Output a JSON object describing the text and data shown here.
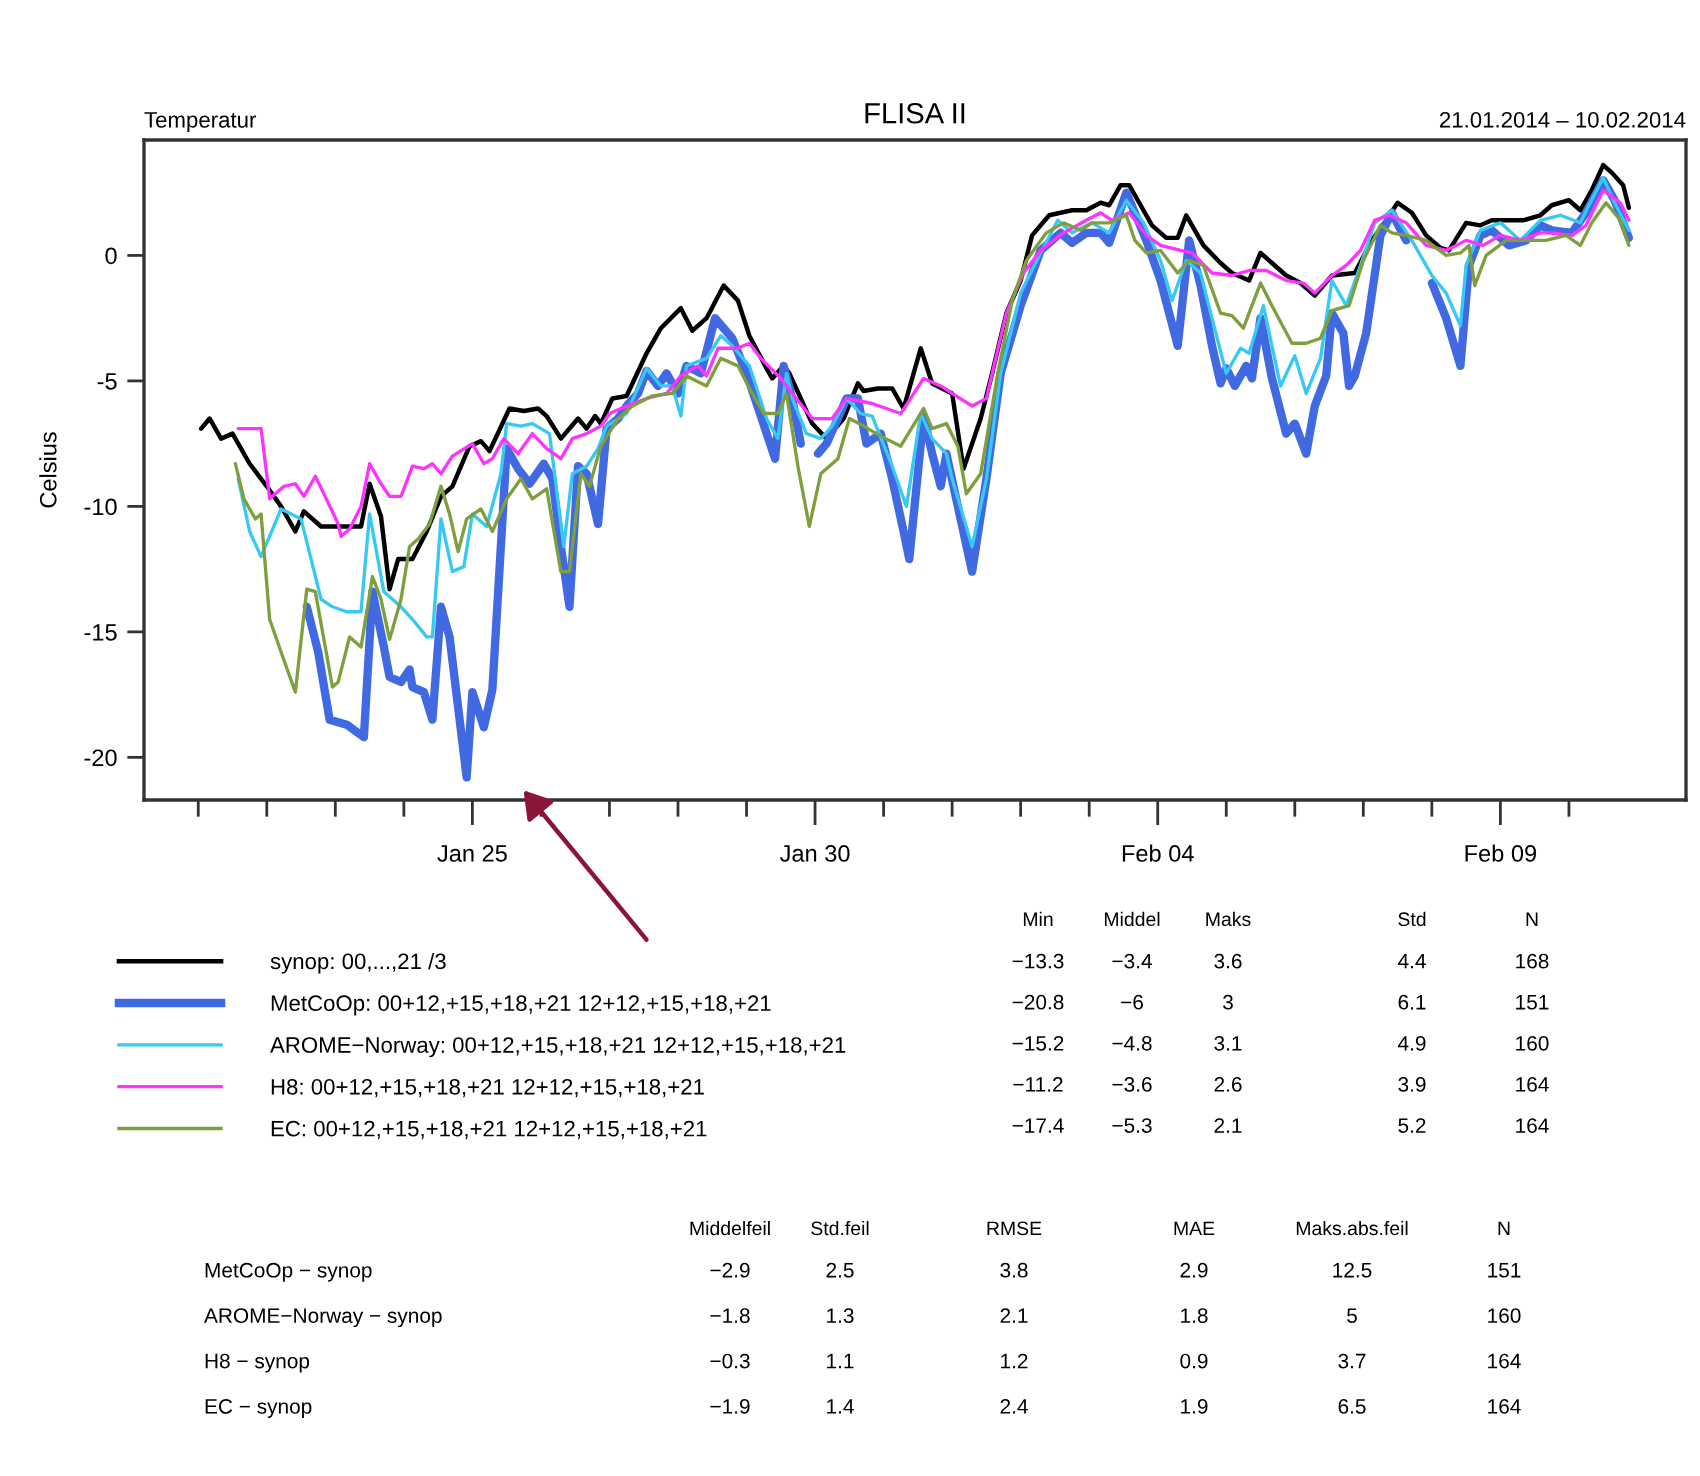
{
  "chart_data": {
    "type": "line",
    "title": "FLISA II",
    "ylabel": "Celsius",
    "annotations": [
      "Temperatur",
      "21.01.2014 – 10.02.2014",
      "Min",
      "Middel",
      "Maks",
      "Std",
      "N",
      "−13.3",
      "−3.4",
      "3.6",
      "4.4",
      "168",
      "−20.8",
      "−6",
      "3",
      "6.1",
      "151",
      "−15.2",
      "−4.8",
      "3.1",
      "4.9",
      "160",
      "−11.2",
      "−3.6",
      "2.6",
      "3.9",
      "164",
      "−17.4",
      "−5.3",
      "2.1",
      "5.2",
      "164",
      "Middelfeil",
      "Std.feil",
      "RMSE",
      "MAE",
      "Maks.abs.feil",
      "N",
      "MetCoOp − synop",
      "−2.9",
      "2.5",
      "3.8",
      "2.9",
      "12.5",
      "151",
      "AROME−Norway − synop",
      "−1.8",
      "1.3",
      "2.1",
      "1.8",
      "5",
      "160",
      "H8 − synop",
      "−0.3",
      "1.1",
      "1.2",
      "0.9",
      "3.7",
      "164",
      "EC − synop",
      "−1.9",
      "1.4",
      "2.4",
      "1.9",
      "6.5",
      "164"
    ],
    "xlim": [
      "2014-01-20T05:00",
      "2014-02-11T17:00"
    ],
    "xticks": [
      {
        "value": "2014-01-21",
        "label": null
      },
      {
        "value": "2014-01-22",
        "label": null
      },
      {
        "value": "2014-01-23",
        "label": null
      },
      {
        "value": "2014-01-24",
        "label": null
      },
      {
        "value": "2014-01-25",
        "label": "Jan 25"
      },
      {
        "value": "2014-01-26",
        "label": null
      },
      {
        "value": "2014-01-27",
        "label": null
      },
      {
        "value": "2014-01-28",
        "label": null
      },
      {
        "value": "2014-01-29",
        "label": null
      },
      {
        "value": "2014-01-30",
        "label": "Jan 30"
      },
      {
        "value": "2014-01-31",
        "label": null
      },
      {
        "value": "2014-02-01",
        "label": null
      },
      {
        "value": "2014-02-02",
        "label": null
      },
      {
        "value": "2014-02-03",
        "label": null
      },
      {
        "value": "2014-02-04",
        "label": "Feb 04"
      },
      {
        "value": "2014-02-05",
        "label": null
      },
      {
        "value": "2014-02-06",
        "label": null
      },
      {
        "value": "2014-02-07",
        "label": null
      },
      {
        "value": "2014-02-08",
        "label": null
      },
      {
        "value": "2014-02-09",
        "label": "Feb 09"
      },
      {
        "value": "2014-02-10",
        "label": null
      }
    ],
    "ylim": [
      -21.7,
      4.6
    ],
    "yticks": [
      -20,
      -15,
      -10,
      -5,
      0
    ],
    "grid": false,
    "legend": "bottom",
    "line_style": "solid",
    "series": [
      {
        "name": "synop: 00,...,21 /3",
        "color": "#000000",
        "x": [
          "2014-01-21T01:00",
          "2014-01-21T04:00",
          "2014-01-21T08:00",
          "2014-01-21T12:00",
          "2014-01-21T18:00",
          "2014-01-22T00:00",
          "2014-01-22T05:00",
          "2014-01-22T10:00",
          "2014-01-22T13:00",
          "2014-01-22T19:00",
          "2014-01-23T02:00",
          "2014-01-23T09:00",
          "2014-01-23T12:00",
          "2014-01-23T16:00",
          "2014-01-23T19:00",
          "2014-01-23T22:00",
          "2014-01-24T03:00",
          "2014-01-24T08:00",
          "2014-01-24T13:00",
          "2014-01-24T17:00",
          "2014-01-24T23:00",
          "2014-01-25T03:00",
          "2014-01-25T06:00",
          "2014-01-25T13:00",
          "2014-01-25T18:00",
          "2014-01-25T23:00",
          "2014-01-26T02:00",
          "2014-01-26T07:00",
          "2014-01-26T13:00",
          "2014-01-26T16:00",
          "2014-01-26T19:00",
          "2014-01-26T21:00",
          "2014-01-27T01:00",
          "2014-01-27T06:00",
          "2014-01-27T13:00",
          "2014-01-27T18:00",
          "2014-01-28T01:00",
          "2014-01-28T05:00",
          "2014-01-28T10:00",
          "2014-01-28T16:00",
          "2014-01-28T21:00",
          "2014-01-29T01:00",
          "2014-01-29T07:00",
          "2014-01-29T09:00",
          "2014-01-29T13:00",
          "2014-01-29T15:00",
          "2014-01-29T19:00",
          "2014-01-29T23:00",
          "2014-01-30T04:00",
          "2014-01-30T10:00",
          "2014-01-30T15:00",
          "2014-01-30T17:00",
          "2014-01-30T22:00",
          "2014-01-31T03:00",
          "2014-01-31T07:00",
          "2014-01-31T13:00",
          "2014-01-31T17:00",
          "2014-02-01T00:00",
          "2014-02-01T04:00",
          "2014-02-01T10:00",
          "2014-02-01T14:00",
          "2014-02-01T19:00",
          "2014-02-02T00:00",
          "2014-02-02T04:00",
          "2014-02-02T10:00",
          "2014-02-02T18:00",
          "2014-02-02T23:00",
          "2014-02-03T04:00",
          "2014-02-03T07:00",
          "2014-02-03T11:00",
          "2014-02-03T14:00",
          "2014-02-03T18:00",
          "2014-02-03T22:00",
          "2014-02-04T03:00",
          "2014-02-04T07:00",
          "2014-02-04T10:00",
          "2014-02-04T12:00",
          "2014-02-04T16:00",
          "2014-02-04T22:00",
          "2014-02-05T02:00",
          "2014-02-05T08:00",
          "2014-02-05T12:00",
          "2014-02-05T16:00",
          "2014-02-05T21:00",
          "2014-02-06T02:00",
          "2014-02-06T07:00",
          "2014-02-06T13:00",
          "2014-02-06T21:00",
          "2014-02-07T03:00",
          "2014-02-07T08:00",
          "2014-02-07T12:00",
          "2014-02-07T17:00",
          "2014-02-07T22:00",
          "2014-02-08T03:00",
          "2014-02-08T06:00",
          "2014-02-08T12:00",
          "2014-02-08T17:00",
          "2014-02-08T21:00",
          "2014-02-09T02:00",
          "2014-02-09T08:00",
          "2014-02-09T14:00",
          "2014-02-09T18:00",
          "2014-02-10T00:00",
          "2014-02-10T04:00",
          "2014-02-10T08:00",
          "2014-02-10T12:00",
          "2014-02-10T15:00",
          "2014-02-10T19:00",
          "2014-02-10T21:00"
        ],
        "values": [
          -6.9,
          -6.5,
          -7.3,
          -7.1,
          -8.3,
          -9.2,
          -10.0,
          -11.0,
          -10.2,
          -10.8,
          -10.8,
          -10.8,
          -9.1,
          -10.4,
          -13.3,
          -12.1,
          -12.1,
          -11.0,
          -9.6,
          -9.2,
          -7.6,
          -7.4,
          -7.8,
          -6.1,
          -6.2,
          -6.1,
          -6.4,
          -7.3,
          -6.5,
          -6.9,
          -6.4,
          -6.7,
          -5.7,
          -5.6,
          -3.9,
          -2.9,
          -2.1,
          -3.0,
          -2.5,
          -1.2,
          -1.8,
          -3.2,
          -4.5,
          -4.9,
          -4.4,
          -4.7,
          -5.7,
          -6.7,
          -7.3,
          -6.5,
          -5.1,
          -5.4,
          -5.3,
          -5.3,
          -6.1,
          -3.7,
          -5.1,
          -5.5,
          -8.5,
          -6.5,
          -4.7,
          -2.3,
          -1.0,
          0.8,
          1.6,
          1.8,
          1.8,
          2.1,
          2.0,
          2.8,
          2.8,
          2.0,
          1.2,
          0.7,
          0.7,
          1.6,
          1.2,
          0.4,
          -0.3,
          -0.7,
          -1.0,
          0.1,
          -0.3,
          -0.8,
          -1.1,
          -1.6,
          -0.8,
          -0.7,
          0.6,
          1.4,
          2.1,
          1.7,
          0.8,
          0.3,
          0.2,
          1.3,
          1.2,
          1.4,
          1.4,
          1.4,
          1.6,
          2.0,
          2.2,
          1.8,
          2.6,
          3.6,
          3.3,
          2.8,
          1.9
        ]
      },
      {
        "name": "MetCoOp: 00+12,+15,+18,+21 12+12,+15,+18,+21",
        "color": "#4169e1",
        "x": [
          "2014-01-22T14:00",
          "2014-01-22T18:00",
          "2014-01-22T22:00",
          "2014-01-23T04:00",
          "2014-01-23T10:00",
          "2014-01-23T13:00",
          "2014-01-23T17:00",
          "2014-01-23T19:00",
          "2014-01-23T23:00",
          "2014-01-24T02:00",
          "2014-01-24T03:00",
          "2014-01-24T07:00",
          "2014-01-24T10:00",
          "2014-01-24T13:00",
          "2014-01-24T16:00",
          "2014-01-24T22:00",
          "2014-01-25T00:00",
          "2014-01-25T04:00",
          "2014-01-25T07:00",
          "2014-01-25T12:00",
          "2014-01-25T16:00",
          "2014-01-25T20:00",
          "2014-01-26T01:00",
          "2014-01-26T04:00",
          "2014-01-26T07:00",
          "2014-01-26T10:00",
          "2014-01-26T13:00",
          "2014-01-26T16:00",
          "2014-01-26T20:00",
          "2014-01-26T23:00",
          "2014-01-27T03:00",
          "2014-01-27T06:00",
          "2014-01-27T10:00",
          "2014-01-27T13:00",
          "2014-01-27T17:00",
          "2014-01-27T20:00",
          "2014-01-28T00:00",
          "2014-01-28T03:00",
          "2014-01-28T08:00",
          "2014-01-28T13:00",
          "2014-01-28T19:00",
          "2014-01-29T00:00",
          "2014-01-29T05:00",
          "2014-01-29T10:00",
          "2014-01-29T13:00",
          "2014-01-29T16:00",
          "2014-01-29T19:00",
          "2014-01-29T21:00",
          "2014-01-30T01:00",
          "2014-01-30T04:00",
          "2014-01-30T08:00",
          "2014-01-30T11:00",
          "2014-01-30T15:00",
          "2014-01-30T18:00",
          "2014-01-30T23:00",
          "2014-01-31T03:00",
          "2014-01-31T07:00",
          "2014-01-31T09:00",
          "2014-01-31T14:00",
          "2014-01-31T17:00",
          "2014-01-31T20:00",
          "2014-01-31T22:00",
          "2014-02-01T02:00",
          "2014-02-01T07:00",
          "2014-02-01T12:00",
          "2014-02-01T17:00",
          "2014-02-02T00:00",
          "2014-02-02T07:00",
          "2014-02-02T14:00",
          "2014-02-02T18:00",
          "2014-02-02T23:00",
          "2014-02-03T04:00",
          "2014-02-03T07:00",
          "2014-02-03T13:00",
          "2014-02-03T16:00",
          "2014-02-03T20:00",
          "2014-02-04T01:00",
          "2014-02-04T04:00",
          "2014-02-04T07:00",
          "2014-02-04T11:00",
          "2014-02-04T15:00",
          "2014-02-04T19:00",
          "2014-02-04T22:00",
          "2014-02-05T00:00",
          "2014-02-05T03:00",
          "2014-02-05T07:00",
          "2014-02-05T09:00",
          "2014-02-05T12:00",
          "2014-02-05T16:00",
          "2014-02-05T21:00",
          "2014-02-06T00:00",
          "2014-02-06T04:00",
          "2014-02-06T07:00",
          "2014-02-06T11:00",
          "2014-02-06T13:00",
          "2014-02-06T17:00",
          "2014-02-06T19:00",
          "2014-02-06T21:00",
          "2014-02-07T01:00",
          "2014-02-07T06:00",
          "2014-02-07T10:00",
          "2014-02-07T15:00",
          "2014-02-07T20:00",
          "2014-02-08T00:00",
          "2014-02-08T05:00",
          "2014-02-08T10:00",
          "2014-02-08T13:00",
          "2014-02-08T17:00",
          "2014-02-08T21:00",
          "2014-02-09T03:00",
          "2014-02-09T09:00",
          "2014-02-09T14:00",
          "2014-02-09T18:00",
          "2014-02-10T01:00",
          "2014-02-10T06:00",
          "2014-02-10T12:00",
          "2014-02-10T16:00",
          "2014-02-10T21:00"
        ],
        "values": [
          -14.0,
          -15.8,
          -18.5,
          -18.7,
          -19.2,
          -13.4,
          -15.6,
          -16.8,
          -17.0,
          -16.5,
          -17.2,
          -17.4,
          -18.5,
          -14.0,
          -15.2,
          -20.8,
          -17.4,
          -18.8,
          -17.3,
          -7.7,
          -8.5,
          -9.1,
          -8.3,
          -8.9,
          -11.6,
          -14.0,
          -8.4,
          -8.7,
          -10.7,
          -6.9,
          -6.5,
          -6.0,
          -5.5,
          -4.6,
          -5.2,
          -4.7,
          -5.5,
          -4.4,
          -4.7,
          -2.5,
          -3.3,
          -4.7,
          -6.4,
          -8.1,
          -4.4,
          -5.7,
          -7.5,
          null,
          -7.9,
          -7.5,
          -6.5,
          -5.7,
          -5.7,
          -7.5,
          -7.1,
          -8.9,
          -11.0,
          -12.1,
          -6.4,
          -7.9,
          -9.2,
          -7.9,
          -10.0,
          -12.6,
          -8.9,
          -4.7,
          -2.0,
          0.2,
          0.9,
          0.5,
          0.9,
          0.9,
          0.5,
          2.5,
          1.7,
          0.6,
          -1.0,
          -2.3,
          -3.6,
          0.6,
          -1.2,
          -3.6,
          -5.1,
          -4.5,
          -5.2,
          -4.4,
          -4.9,
          -2.5,
          -4.9,
          -7.1,
          -6.7,
          -7.9,
          -6.0,
          -4.8,
          -2.3,
          -3.1,
          -5.2,
          -4.8,
          -3.1,
          0.8,
          1.7,
          0.6,
          null,
          -1.1,
          -2.5,
          -4.4,
          -0.4,
          0.8,
          1.0,
          0.4,
          0.6,
          1.2,
          1.0,
          0.9,
          1.7,
          3.0,
          2.2,
          0.7
        ]
      },
      {
        "name": "AROME−Norway: 00+12,+15,+18,+21 12+12,+15,+18,+21",
        "color": "#38c8f4",
        "x": [
          "2014-01-21T14:00",
          "2014-01-21T18:00",
          "2014-01-21T22:00",
          "2014-01-22T05:00",
          "2014-01-22T12:00",
          "2014-01-22T19:00",
          "2014-01-22T23:00",
          "2014-01-23T04:00",
          "2014-01-23T09:00",
          "2014-01-23T12:00",
          "2014-01-23T17:00",
          "2014-01-23T23:00",
          "2014-01-24T03:00",
          "2014-01-24T08:00",
          "2014-01-24T10:00",
          "2014-01-24T13:00",
          "2014-01-24T17:00",
          "2014-01-24T21:00",
          "2014-01-25T00:00",
          "2014-01-25T05:00",
          "2014-01-25T10:00",
          "2014-01-25T12:00",
          "2014-01-25T17:00",
          "2014-01-25T21:00",
          "2014-01-26T03:00",
          "2014-01-26T08:00",
          "2014-01-26T11:00",
          "2014-01-26T16:00",
          "2014-01-26T20:00",
          "2014-01-26T23:00",
          "2014-01-27T06:00",
          "2014-01-27T13:00",
          "2014-01-27T18:00",
          "2014-01-27T22:00",
          "2014-01-28T01:00",
          "2014-01-28T03:00",
          "2014-01-28T10:00",
          "2014-01-28T15:00",
          "2014-01-28T19:00",
          "2014-01-29T01:00",
          "2014-01-29T07:00",
          "2014-01-29T11:00",
          "2014-01-29T14:00",
          "2014-01-29T16:00",
          "2014-01-29T21:00",
          "2014-01-30T02:00",
          "2014-01-30T06:00",
          "2014-01-30T11:00",
          "2014-01-30T16:00",
          "2014-01-30T20:00",
          "2014-01-31T03:00",
          "2014-01-31T08:00",
          "2014-01-31T13:00",
          "2014-01-31T17:00",
          "2014-01-31T22:00",
          "2014-02-01T00:00",
          "2014-02-01T07:00",
          "2014-02-01T12:00",
          "2014-02-01T17:00",
          "2014-02-02T00:00",
          "2014-02-02T07:00",
          "2014-02-02T13:00",
          "2014-02-02T18:00",
          "2014-02-03T01:00",
          "2014-02-03T07:00",
          "2014-02-03T13:00",
          "2014-02-03T19:00",
          "2014-02-04T01:00",
          "2014-02-04T05:00",
          "2014-02-04T10:00",
          "2014-02-04T15:00",
          "2014-02-04T19:00",
          "2014-02-05T00:00",
          "2014-02-05T05:00",
          "2014-02-05T08:00",
          "2014-02-05T13:00",
          "2014-02-05T19:00",
          "2014-02-06T00:00",
          "2014-02-06T04:00",
          "2014-02-06T09:00",
          "2014-02-06T13:00",
          "2014-02-06T18:00",
          "2014-02-06T23:00",
          "2014-02-07T04:00",
          "2014-02-07T10:00",
          "2014-02-07T17:00",
          "2014-02-08T00:00",
          "2014-02-08T05:00",
          "2014-02-08T10:00",
          "2014-02-08T12:00",
          "2014-02-08T17:00",
          "2014-02-09T00:00",
          "2014-02-09T07:00",
          "2014-02-09T14:00",
          "2014-02-09T21:00",
          "2014-02-10T04:00",
          "2014-02-10T07:00",
          "2014-02-10T12:00",
          "2014-02-10T16:00",
          "2014-02-10T21:00"
        ],
        "values": [
          -8.9,
          -11.0,
          -12.0,
          -10.1,
          -10.5,
          -13.7,
          -14.0,
          -14.2,
          -14.2,
          -10.3,
          -13.4,
          -14.0,
          -14.5,
          -15.2,
          -15.2,
          -10.5,
          -12.6,
          -12.4,
          -10.3,
          -10.8,
          -8.7,
          -6.7,
          -6.8,
          -6.7,
          -7.1,
          -11.6,
          -8.7,
          -8.4,
          -7.7,
          -6.8,
          -6.3,
          -4.5,
          -5.2,
          -5.2,
          -6.4,
          -4.4,
          -4.1,
          -3.2,
          -3.6,
          -4.4,
          -6.5,
          -7.3,
          -4.7,
          -5.7,
          -7.1,
          -7.3,
          -6.8,
          -5.7,
          -6.3,
          -6.4,
          -8.4,
          -10.0,
          -6.3,
          -7.3,
          -7.9,
          -8.9,
          -11.6,
          -8.9,
          -4.7,
          -1.5,
          0.1,
          1.4,
          0.9,
          1.3,
          0.9,
          2.2,
          1.3,
          -0.2,
          -1.8,
          -0.2,
          -0.7,
          -2.5,
          -4.7,
          -3.7,
          -3.9,
          -2.0,
          -5.2,
          -4.0,
          -5.5,
          -4.1,
          -1.0,
          -2.0,
          -0.4,
          1.3,
          1.8,
          0.6,
          -0.8,
          -1.5,
          -2.8,
          -0.4,
          1.0,
          1.3,
          0.6,
          1.4,
          1.6,
          1.3,
          2.0,
          3.1,
          2.1,
          1.0
        ]
      },
      {
        "name": "H8: 00+12,+15,+18,+21 12+12,+15,+18,+21",
        "color": "#ff33ff",
        "x": [
          "2014-01-21T14:00",
          "2014-01-21T22:00",
          "2014-01-22T01:00",
          "2014-01-22T06:00",
          "2014-01-22T10:00",
          "2014-01-22T13:00",
          "2014-01-22T17:00",
          "2014-01-22T20:00",
          "2014-01-23T01:00",
          "2014-01-23T02:00",
          "2014-01-23T05:00",
          "2014-01-23T09:00",
          "2014-01-23T12:00",
          "2014-01-23T16:00",
          "2014-01-23T19:00",
          "2014-01-23T23:00",
          "2014-01-24T03:00",
          "2014-01-24T07:00",
          "2014-01-24T10:00",
          "2014-01-24T13:00",
          "2014-01-24T17:00",
          "2014-01-25T00:00",
          "2014-01-25T04:00",
          "2014-01-25T07:00",
          "2014-01-25T11:00",
          "2014-01-25T16:00",
          "2014-01-25T21:00",
          "2014-01-26T02:00",
          "2014-01-26T07:00",
          "2014-01-26T11:00",
          "2014-01-26T16:00",
          "2014-01-26T21:00",
          "2014-01-27T00:00",
          "2014-01-27T06:00",
          "2014-01-27T13:00",
          "2014-01-27T20:00",
          "2014-01-28T01:00",
          "2014-01-28T07:00",
          "2014-01-28T10:00",
          "2014-01-28T14:00",
          "2014-01-28T21:00",
          "2014-01-29T01:00",
          "2014-01-29T05:00",
          "2014-01-29T12:00",
          "2014-01-29T16:00",
          "2014-01-29T23:00",
          "2014-01-30T06:00",
          "2014-01-30T11:00",
          "2014-01-30T20:00",
          "2014-01-31T06:00",
          "2014-01-31T14:00",
          "2014-01-31T20:00",
          "2014-02-01T00:00",
          "2014-02-01T07:00",
          "2014-02-01T12:00",
          "2014-02-01T19:00",
          "2014-02-02T01:00",
          "2014-02-02T07:00",
          "2014-02-02T15:00",
          "2014-02-02T23:00",
          "2014-02-03T04:00",
          "2014-02-03T08:00",
          "2014-02-03T14:00",
          "2014-02-03T20:00",
          "2014-02-04T01:00",
          "2014-02-04T08:00",
          "2014-02-04T12:00",
          "2014-02-04T19:00",
          "2014-02-05T02:00",
          "2014-02-05T08:00",
          "2014-02-05T14:00",
          "2014-02-05T21:00",
          "2014-02-06T03:00",
          "2014-02-06T07:00",
          "2014-02-06T13:00",
          "2014-02-06T18:00",
          "2014-02-06T23:00",
          "2014-02-07T04:00",
          "2014-02-07T09:00",
          "2014-02-07T15:00",
          "2014-02-07T22:00",
          "2014-02-08T05:00",
          "2014-02-08T12:00",
          "2014-02-08T18:00",
          "2014-02-09T00:00",
          "2014-02-09T07:00",
          "2014-02-09T14:00",
          "2014-02-09T18:00",
          "2014-02-10T01:00",
          "2014-02-10T06:00",
          "2014-02-10T12:00",
          "2014-02-10T18:00",
          "2014-02-10T21:00"
        ],
        "values": [
          -6.9,
          -6.9,
          -9.7,
          -9.2,
          -9.1,
          -9.6,
          -8.8,
          -9.5,
          -10.7,
          -11.2,
          -10.9,
          -10.0,
          -8.3,
          -9.1,
          -9.6,
          -9.6,
          -8.4,
          -8.5,
          -8.3,
          -8.7,
          -8.0,
          -7.5,
          -8.3,
          -8.1,
          -7.3,
          -7.9,
          -7.1,
          -7.7,
          -8.1,
          -7.3,
          -7.1,
          -6.8,
          -6.3,
          -6.0,
          -5.7,
          -5.5,
          -4.8,
          -4.4,
          -4.8,
          -3.7,
          -3.7,
          -3.5,
          -4.1,
          -4.9,
          -5.5,
          -6.5,
          -6.5,
          -5.7,
          -5.9,
          -6.3,
          -4.9,
          -5.2,
          -5.5,
          -6.0,
          -5.7,
          -2.3,
          -0.7,
          0.2,
          0.9,
          1.4,
          1.7,
          1.4,
          1.7,
          0.8,
          0.4,
          0.2,
          0.1,
          -0.7,
          -0.8,
          -0.6,
          -0.6,
          -1.0,
          -1.1,
          -1.5,
          -0.8,
          -0.4,
          0.2,
          1.4,
          1.6,
          1.3,
          0.4,
          0.2,
          0.6,
          0.4,
          0.8,
          0.6,
          0.9,
          0.9,
          0.8,
          1.2,
          2.6,
          2.1,
          1.4
        ]
      },
      {
        "name": "EC: 00+12,+15,+18,+21 12+12,+15,+18,+21",
        "color": "#7f9f3f",
        "x": [
          "2014-01-21T13:00",
          "2014-01-21T16:00",
          "2014-01-21T20:00",
          "2014-01-21T22:00",
          "2014-01-22T01:00",
          "2014-01-22T05:00",
          "2014-01-22T10:00",
          "2014-01-22T14:00",
          "2014-01-22T17:00",
          "2014-01-22T20:00",
          "2014-01-22T23:00",
          "2014-01-23T01:00",
          "2014-01-23T05:00",
          "2014-01-23T09:00",
          "2014-01-23T13:00",
          "2014-01-23T16:00",
          "2014-01-23T19:00",
          "2014-01-23T23:00",
          "2014-01-24T02:00",
          "2014-01-24T05:00",
          "2014-01-24T09:00",
          "2014-01-24T13:00",
          "2014-01-24T16:00",
          "2014-01-24T19:00",
          "2014-01-24T22:00",
          "2014-01-25T03:00",
          "2014-01-25T07:00",
          "2014-01-25T12:00",
          "2014-01-25T17:00",
          "2014-01-25T21:00",
          "2014-01-26T02:00",
          "2014-01-26T07:00",
          "2014-01-26T10:00",
          "2014-01-26T14:00",
          "2014-01-26T17:00",
          "2014-01-26T21:00",
          "2014-01-27T03:00",
          "2014-01-27T08:00",
          "2014-01-27T15:00",
          "2014-01-27T22:00",
          "2014-01-28T03:00",
          "2014-01-28T10:00",
          "2014-01-28T15:00",
          "2014-01-28T21:00",
          "2014-01-29T01:00",
          "2014-01-29T06:00",
          "2014-01-29T11:00",
          "2014-01-29T14:00",
          "2014-01-29T18:00",
          "2014-01-29T22:00",
          "2014-01-30T02:00",
          "2014-01-30T08:00",
          "2014-01-30T12:00",
          "2014-01-30T17:00",
          "2014-01-30T23:00",
          "2014-01-31T06:00",
          "2014-01-31T14:00",
          "2014-01-31T17:00",
          "2014-01-31T22:00",
          "2014-02-01T02:00",
          "2014-02-01T05:00",
          "2014-02-01T10:00",
          "2014-02-01T16:00",
          "2014-02-01T21:00",
          "2014-02-02T02:00",
          "2014-02-02T09:00",
          "2014-02-02T15:00",
          "2014-02-02T21:00",
          "2014-02-03T01:00",
          "2014-02-03T07:00",
          "2014-02-03T13:00",
          "2014-02-03T16:00",
          "2014-02-03T20:00",
          "2014-02-04T01:00",
          "2014-02-04T07:00",
          "2014-02-04T11:00",
          "2014-02-04T16:00",
          "2014-02-04T22:00",
          "2014-02-05T02:00",
          "2014-02-05T06:00",
          "2014-02-05T12:00",
          "2014-02-05T16:00",
          "2014-02-05T23:00",
          "2014-02-06T04:00",
          "2014-02-06T09:00",
          "2014-02-06T13:00",
          "2014-02-06T19:00",
          "2014-02-07T00:00",
          "2014-02-07T06:00",
          "2014-02-07T10:00",
          "2014-02-07T15:00",
          "2014-02-07T22:00",
          "2014-02-08T05:00",
          "2014-02-08T10:00",
          "2014-02-08T13:00",
          "2014-02-08T15:00",
          "2014-02-08T19:00",
          "2014-02-09T02:00",
          "2014-02-09T09:00",
          "2014-02-09T16:00",
          "2014-02-09T23:00",
          "2014-02-10T04:00",
          "2014-02-10T08:00",
          "2014-02-10T13:00",
          "2014-02-10T18:00",
          "2014-02-10T21:00"
        ],
        "values": [
          -8.3,
          -9.7,
          -10.5,
          -10.3,
          -14.5,
          -15.8,
          -17.4,
          -13.3,
          -13.4,
          -15.3,
          -17.2,
          -17.0,
          -15.2,
          -15.6,
          -12.8,
          -13.7,
          -15.3,
          -13.7,
          -11.6,
          -11.3,
          -10.7,
          -9.2,
          -10.3,
          -11.8,
          -10.5,
          -10.1,
          -11.0,
          -9.7,
          -8.9,
          -9.7,
          -9.3,
          -12.6,
          -12.6,
          -8.7,
          -9.2,
          -7.6,
          -6.5,
          -6.0,
          -5.6,
          -5.5,
          -4.8,
          -5.2,
          -4.1,
          -4.4,
          -5.3,
          -6.3,
          -6.3,
          -5.5,
          -8.4,
          -10.8,
          -8.7,
          -8.1,
          -6.5,
          -6.8,
          -7.2,
          -7.6,
          -6.1,
          -6.9,
          -6.7,
          -7.6,
          -9.5,
          -8.7,
          -4.7,
          -1.8,
          -0.2,
          0.9,
          1.3,
          1.0,
          1.3,
          1.3,
          1.6,
          0.6,
          0.1,
          0.2,
          -0.7,
          -0.2,
          -0.4,
          -2.3,
          -2.4,
          -2.9,
          -1.1,
          -2.0,
          -3.5,
          -3.5,
          -3.3,
          -2.2,
          -2.0,
          -0.2,
          1.2,
          0.9,
          0.8,
          0.6,
          0.0,
          0.1,
          0.4,
          -1.2,
          0.0,
          0.6,
          0.6,
          0.6,
          0.8,
          0.4,
          1.3,
          2.1,
          1.4,
          0.4
        ]
      }
    ]
  }
}
